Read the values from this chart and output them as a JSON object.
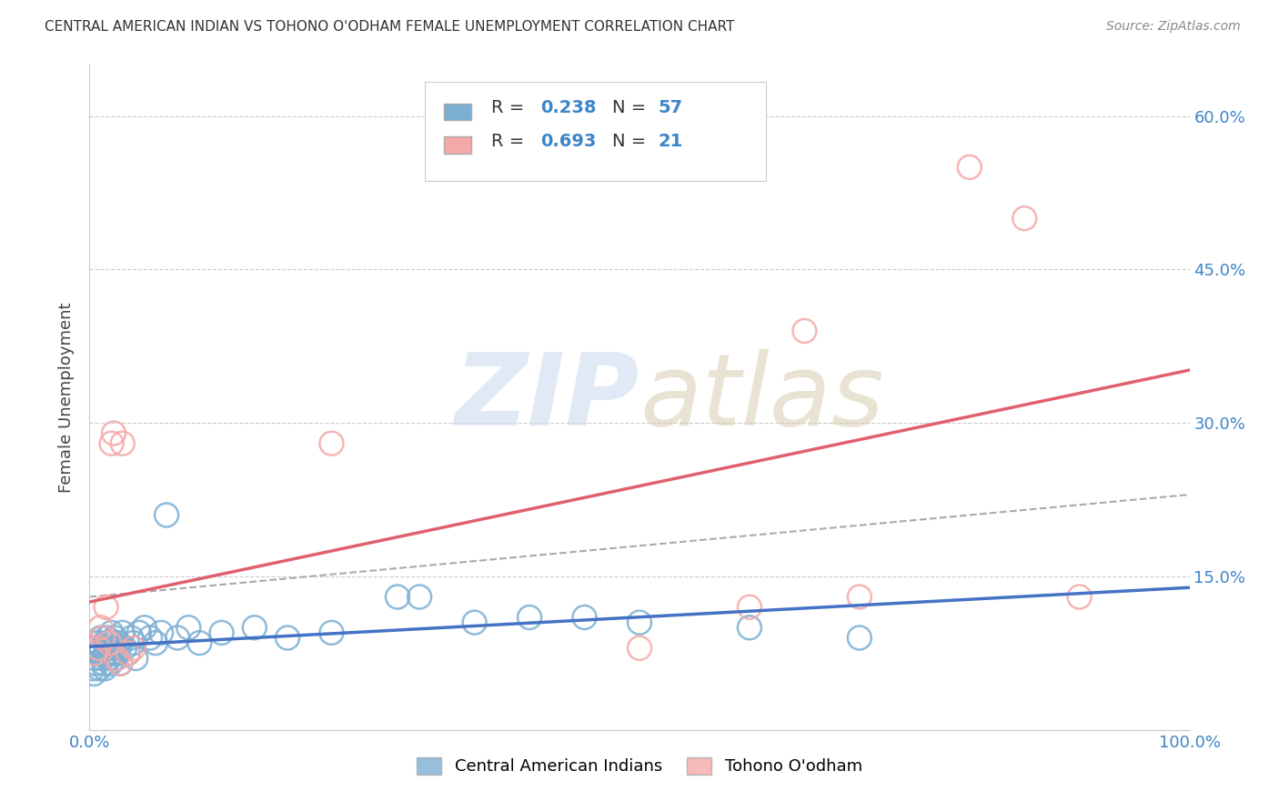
{
  "title": "CENTRAL AMERICAN INDIAN VS TOHONO O'ODHAM FEMALE UNEMPLOYMENT CORRELATION CHART",
  "source": "Source: ZipAtlas.com",
  "ylabel": "Female Unemployment",
  "xlim": [
    0,
    1
  ],
  "ylim": [
    0,
    0.65
  ],
  "x_ticks": [
    0.0,
    0.25,
    0.5,
    0.75,
    1.0
  ],
  "x_tick_labels": [
    "0.0%",
    "",
    "",
    "",
    "100.0%"
  ],
  "y_ticks": [
    0.0,
    0.15,
    0.3,
    0.45,
    0.6
  ],
  "y_tick_labels": [
    "",
    "15.0%",
    "30.0%",
    "45.0%",
    "60.0%"
  ],
  "blue_color": "#7bafd4",
  "pink_color": "#f4a9a8",
  "blue_line_color": "#4472c4",
  "pink_line_color": "#e06070",
  "dash_line_color": "#aaaaaa",
  "legend_labels": [
    "Central American Indians",
    "Tohono O'odham"
  ],
  "blue_scatter_x": [
    0.003,
    0.004,
    0.005,
    0.005,
    0.006,
    0.007,
    0.008,
    0.009,
    0.01,
    0.01,
    0.011,
    0.012,
    0.013,
    0.014,
    0.015,
    0.015,
    0.016,
    0.017,
    0.018,
    0.019,
    0.02,
    0.02,
    0.021,
    0.022,
    0.023,
    0.024,
    0.025,
    0.026,
    0.027,
    0.028,
    0.03,
    0.032,
    0.035,
    0.038,
    0.04,
    0.042,
    0.045,
    0.05,
    0.055,
    0.06,
    0.065,
    0.07,
    0.08,
    0.09,
    0.1,
    0.12,
    0.15,
    0.18,
    0.22,
    0.28,
    0.3,
    0.35,
    0.4,
    0.45,
    0.5,
    0.6,
    0.7
  ],
  "blue_scatter_y": [
    0.06,
    0.055,
    0.08,
    0.07,
    0.065,
    0.075,
    0.085,
    0.06,
    0.09,
    0.075,
    0.08,
    0.07,
    0.065,
    0.06,
    0.085,
    0.075,
    0.09,
    0.08,
    0.07,
    0.065,
    0.095,
    0.075,
    0.085,
    0.08,
    0.09,
    0.07,
    0.075,
    0.085,
    0.08,
    0.065,
    0.095,
    0.08,
    0.075,
    0.09,
    0.085,
    0.07,
    0.095,
    0.1,
    0.09,
    0.085,
    0.095,
    0.21,
    0.09,
    0.1,
    0.085,
    0.095,
    0.1,
    0.09,
    0.095,
    0.13,
    0.13,
    0.105,
    0.11,
    0.11,
    0.105,
    0.1,
    0.09
  ],
  "pink_scatter_x": [
    0.005,
    0.008,
    0.01,
    0.012,
    0.015,
    0.018,
    0.02,
    0.022,
    0.025,
    0.028,
    0.03,
    0.035,
    0.04,
    0.22,
    0.5,
    0.6,
    0.65,
    0.7,
    0.8,
    0.85,
    0.9
  ],
  "pink_scatter_y": [
    0.075,
    0.08,
    0.1,
    0.09,
    0.12,
    0.085,
    0.28,
    0.29,
    0.07,
    0.065,
    0.28,
    0.075,
    0.08,
    0.28,
    0.08,
    0.12,
    0.39,
    0.13,
    0.55,
    0.5,
    0.13
  ],
  "background_color": "#ffffff",
  "grid_color": "#cccccc",
  "blue_R_text": "R = 0.238",
  "blue_N_text": "N = 57",
  "pink_R_text": "R = 0.693",
  "pink_N_text": "N = 21"
}
